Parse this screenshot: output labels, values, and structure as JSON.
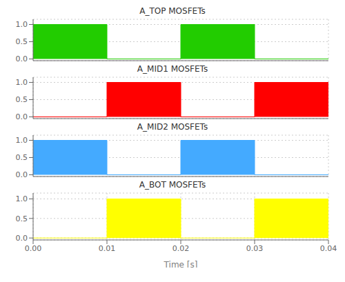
{
  "chart_data": [
    {
      "type": "step_area",
      "title": "A_TOP MOSFETs",
      "x": [
        0.0,
        0.01,
        0.01,
        0.02,
        0.02,
        0.03,
        0.03,
        0.04
      ],
      "values": [
        1,
        1,
        0,
        0,
        1,
        1,
        0,
        0
      ],
      "color": "#22cc00",
      "xlim": [
        0.0,
        0.04
      ],
      "xticks": [
        0,
        0.01,
        0.02,
        0.03,
        0.04
      ],
      "ylim": [
        -0.05,
        1.15
      ],
      "yticks": [
        {
          "value": 0.0,
          "label": "0.0"
        },
        {
          "value": 0.5,
          "label": "0.5"
        },
        {
          "value": 1.0,
          "label": "1.0"
        }
      ],
      "grid": true,
      "tick_labels": "y"
    },
    {
      "type": "step_area",
      "title": "A_MID1 MOSFETs",
      "x": [
        0.0,
        0.01,
        0.01,
        0.02,
        0.02,
        0.03,
        0.03,
        0.04
      ],
      "values": [
        0,
        0,
        1,
        1,
        0,
        0,
        1,
        1
      ],
      "color": "#ff0000",
      "xlim": [
        0.0,
        0.04
      ],
      "xticks": [
        0,
        0.01,
        0.02,
        0.03,
        0.04
      ],
      "ylim": [
        -0.05,
        1.15
      ],
      "yticks": [
        {
          "value": 0.0,
          "label": "0.0"
        },
        {
          "value": 0.5,
          "label": "0.5"
        },
        {
          "value": 1.0,
          "label": "1.0"
        }
      ],
      "grid": true,
      "tick_labels": "y"
    },
    {
      "type": "step_area",
      "title": "A_MID2 MOSFETs",
      "x": [
        0.0,
        0.01,
        0.01,
        0.02,
        0.02,
        0.03,
        0.03,
        0.04
      ],
      "values": [
        1,
        1,
        0,
        0,
        1,
        1,
        0,
        0
      ],
      "color": "#44aaff",
      "xlim": [
        0.0,
        0.04
      ],
      "xticks": [
        0,
        0.01,
        0.02,
        0.03,
        0.04
      ],
      "ylim": [
        -0.05,
        1.15
      ],
      "yticks": [
        {
          "value": 0.0,
          "label": "0.0"
        },
        {
          "value": 0.5,
          "label": "0.5"
        },
        {
          "value": 1.0,
          "label": "1.0"
        }
      ],
      "grid": true,
      "tick_labels": "y"
    },
    {
      "type": "step_area",
      "title": "A_BOT MOSFETs",
      "x": [
        0.0,
        0.01,
        0.01,
        0.02,
        0.02,
        0.03,
        0.03,
        0.04
      ],
      "values": [
        0,
        0,
        1,
        1,
        0,
        0,
        1,
        1
      ],
      "color": "#ffff00",
      "xlabel": "Time [s]",
      "xlim": [
        0.0,
        0.04
      ],
      "xticks": [
        {
          "value": 0.0,
          "label": "0.00"
        },
        {
          "value": 0.01,
          "label": "0.01"
        },
        {
          "value": 0.02,
          "label": "0.02"
        },
        {
          "value": 0.03,
          "label": "0.03"
        },
        {
          "value": 0.04,
          "label": "0.04"
        }
      ],
      "ylim": [
        -0.05,
        1.15
      ],
      "yticks": [
        {
          "value": 0.0,
          "label": "0.0"
        },
        {
          "value": 0.5,
          "label": "0.5"
        },
        {
          "value": 1.0,
          "label": "1.0"
        }
      ],
      "grid": true
    }
  ]
}
